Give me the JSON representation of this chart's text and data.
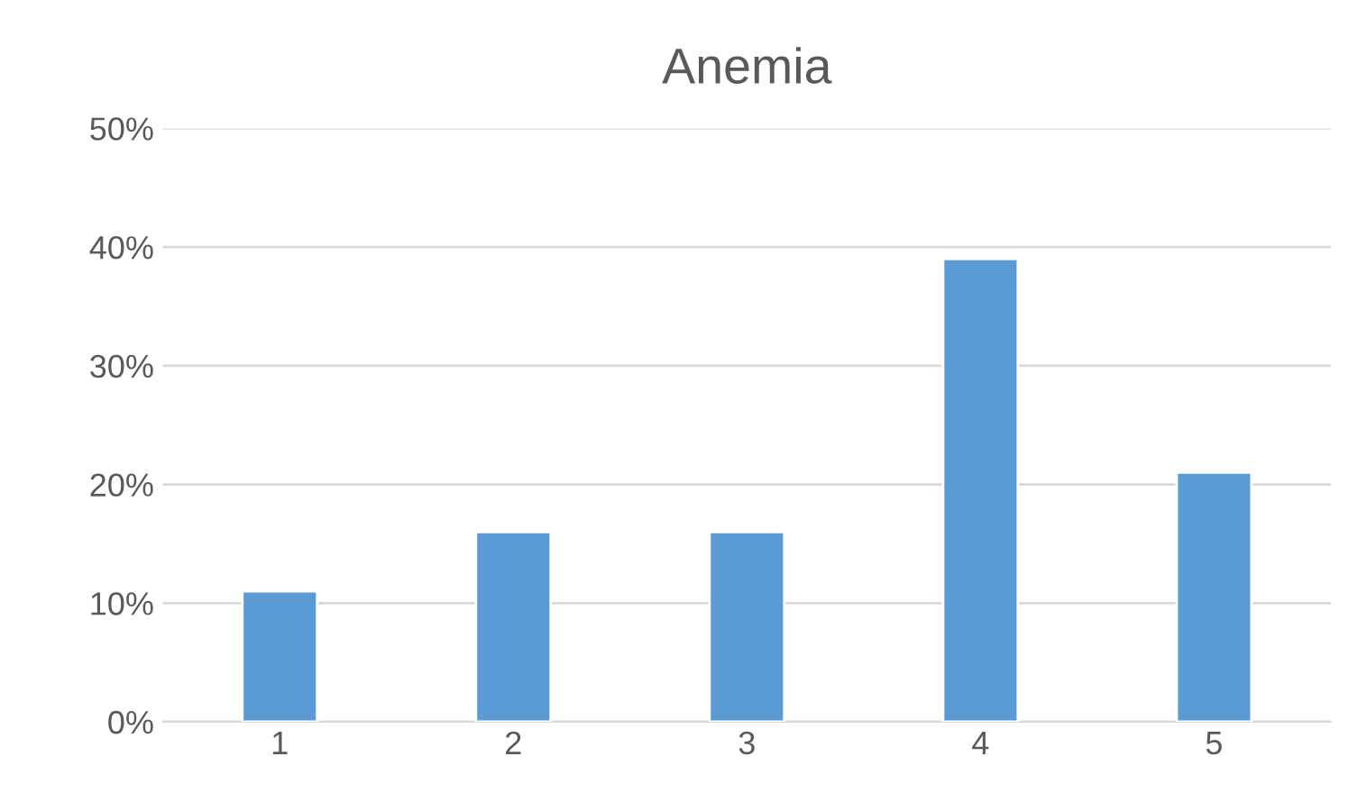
{
  "chart_data": {
    "type": "bar",
    "title": "Anemia",
    "categories": [
      "1",
      "2",
      "3",
      "4",
      "5"
    ],
    "values": [
      11,
      16,
      16,
      39,
      21
    ],
    "color": "#5b9bd5",
    "ylim": [
      0,
      50
    ],
    "yticks": [
      {
        "value": 0,
        "label": "0%"
      },
      {
        "value": 10,
        "label": "10%"
      },
      {
        "value": 20,
        "label": "20%"
      },
      {
        "value": 30,
        "label": "30%"
      },
      {
        "value": 40,
        "label": "40%"
      },
      {
        "value": 50,
        "label": "50%"
      }
    ],
    "grid": "y"
  }
}
